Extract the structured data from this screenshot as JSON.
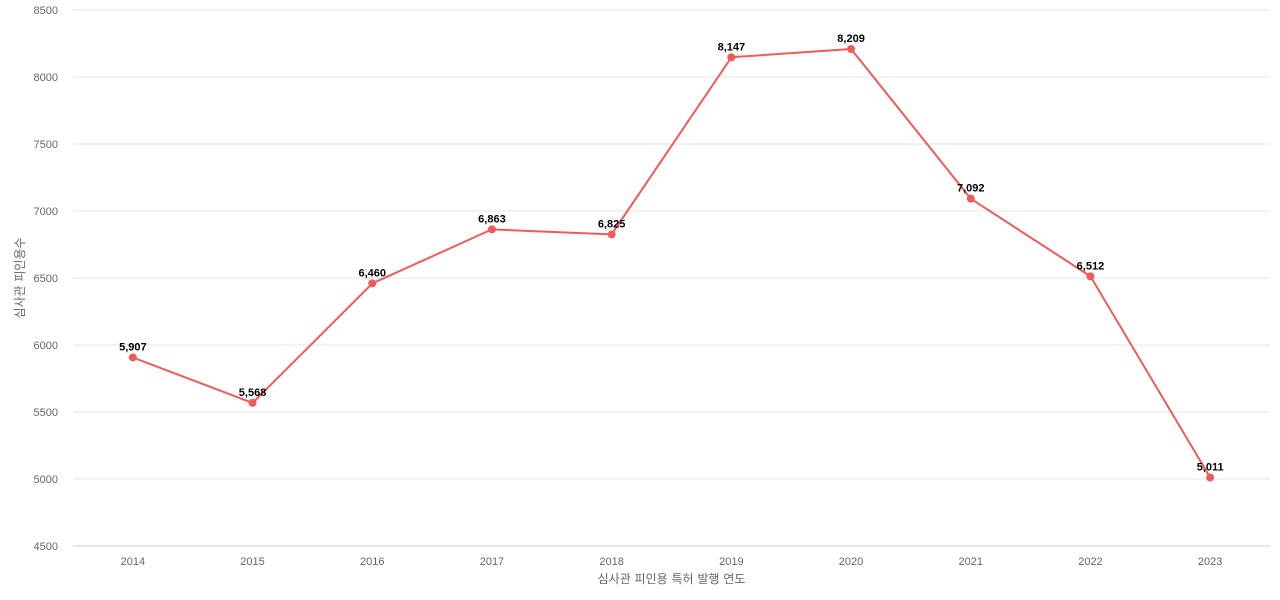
{
  "chart_data": {
    "type": "line",
    "categories": [
      "2014",
      "2015",
      "2016",
      "2017",
      "2018",
      "2019",
      "2020",
      "2021",
      "2022",
      "2023"
    ],
    "series": [
      {
        "values": [
          5907,
          5568,
          6460,
          6863,
          6825,
          8147,
          8209,
          7092,
          6512,
          5011
        ],
        "data_labels": [
          "5,907",
          "5,568",
          "6,460",
          "6,863",
          "6,825",
          "8,147",
          "8,209",
          "7,092",
          "6,512",
          "5,011"
        ]
      }
    ],
    "xlabel": "심사관 피인용 특허 발행 연도",
    "ylabel": "심사관 피인용수",
    "ylim": [
      4500,
      8500
    ],
    "yticks": [
      "4500",
      "5000",
      "5500",
      "6000",
      "6500",
      "7000",
      "7500",
      "8000",
      "8500"
    ],
    "grid": true,
    "legend": false,
    "colors": {
      "line": "#ef5a5a",
      "grid": "#e6e6e6",
      "axis": "#cccccc",
      "tick_text": "#666666",
      "label_text": "#000000"
    }
  }
}
